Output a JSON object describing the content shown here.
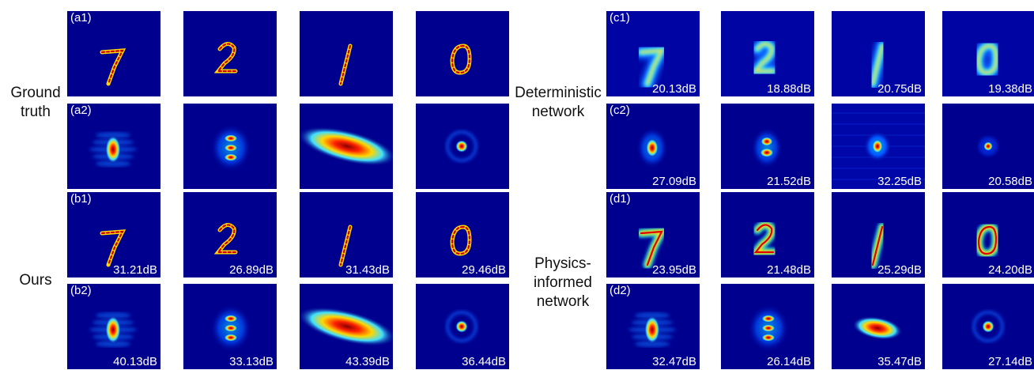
{
  "row_labels": {
    "ground_truth": [
      "Ground",
      "truth"
    ],
    "ours": "Ours",
    "deterministic": [
      "Deterministic",
      "network"
    ],
    "physics": [
      "Physics-",
      "informed",
      "network"
    ]
  },
  "colors": {
    "background": "#00008f",
    "text": "#ffffff"
  },
  "panels": {
    "a1": {
      "tag": "(a1)",
      "db": [
        "",
        "",
        "",
        ""
      ],
      "kind": [
        "digit-7",
        "digit-2",
        "digit-1",
        "digit-0"
      ]
    },
    "a2": {
      "tag": "(a2)",
      "db": [
        "",
        "",
        "",
        ""
      ],
      "kind": [
        "speckle-vertical",
        "speckle-stacked",
        "ellipse-band",
        "ring"
      ]
    },
    "b1": {
      "tag": "(b1)",
      "db": [
        "31.21dB",
        "26.89dB",
        "31.43dB",
        "29.46dB"
      ],
      "kind": [
        "digit-7",
        "digit-2",
        "digit-1",
        "digit-0"
      ]
    },
    "b2": {
      "tag": "(b2)",
      "db": [
        "40.13dB",
        "33.13dB",
        "43.39dB",
        "36.44dB"
      ],
      "kind": [
        "speckle-vertical",
        "speckle-stacked",
        "ellipse-band",
        "ring"
      ]
    },
    "c1": {
      "tag": "(c1)",
      "db": [
        "20.13dB",
        "18.88dB",
        "20.75dB",
        "19.38dB"
      ],
      "kind": [
        "blur-7",
        "blur-2",
        "blur-1",
        "blur-0"
      ]
    },
    "c2": {
      "tag": "(c2)",
      "db": [
        "27.09dB",
        "21.52dB",
        "32.25dB",
        "20.58dB"
      ],
      "kind": [
        "blob",
        "blob-stacked",
        "noise-blob",
        "spot"
      ]
    },
    "d1": {
      "tag": "(d1)",
      "db": [
        "23.95dB",
        "21.48dB",
        "25.29dB",
        "24.20dB"
      ],
      "kind": [
        "smooth-7",
        "smooth-2",
        "smooth-1",
        "smooth-0"
      ]
    },
    "d2": {
      "tag": "(d2)",
      "db": [
        "32.47dB",
        "26.14dB",
        "35.47dB",
        "27.14dB"
      ],
      "kind": [
        "speckle-vertical",
        "speckle-stacked",
        "oval-blob",
        "ring"
      ]
    }
  }
}
